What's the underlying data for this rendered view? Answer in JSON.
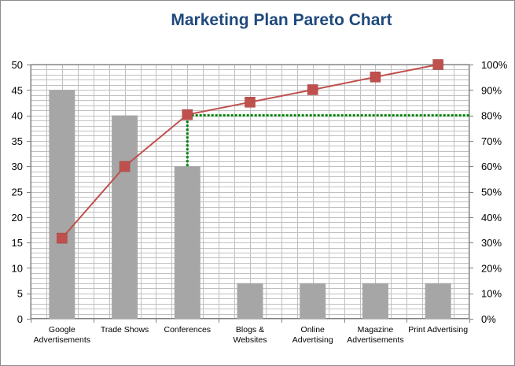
{
  "chart_data": {
    "type": "bar",
    "title": "Marketing Plan Pareto Chart",
    "categories": [
      [
        "Google",
        "Advertisements"
      ],
      [
        "Trade Shows"
      ],
      [
        "Conferences"
      ],
      [
        "Blogs &",
        "Websites"
      ],
      [
        "Online",
        "Advertising"
      ],
      [
        "Magazine",
        "Advertisements"
      ],
      [
        "Print Advertising"
      ]
    ],
    "series": [
      {
        "type": "bar",
        "values": [
          45,
          40,
          30,
          7,
          7,
          7,
          7
        ]
      },
      {
        "type": "line",
        "axis": "secondary",
        "values": [
          31.7,
          59.9,
          80.3,
          85.2,
          90.1,
          95.1,
          100
        ]
      }
    ],
    "threshold": {
      "value": 80,
      "axis": "secondary",
      "category_index": 2
    },
    "y_left": {
      "min": 0,
      "max": 50,
      "step": 5,
      "ticks": [
        "0",
        "5",
        "10",
        "15",
        "20",
        "25",
        "30",
        "35",
        "40",
        "45",
        "50"
      ]
    },
    "y_right": {
      "min": 0,
      "max": 100,
      "step": 10,
      "ticks": [
        "0%",
        "10%",
        "20%",
        "30%",
        "40%",
        "50%",
        "60%",
        "70%",
        "80%",
        "90%",
        "100%"
      ]
    },
    "grid": true,
    "legend": "none",
    "colors": {
      "bar": "#a6a6a6",
      "line": "#c0504d",
      "marker": "#c0504d",
      "threshold": "#00800a",
      "grid": "#c0c0c0",
      "title": "#1f497d"
    }
  }
}
